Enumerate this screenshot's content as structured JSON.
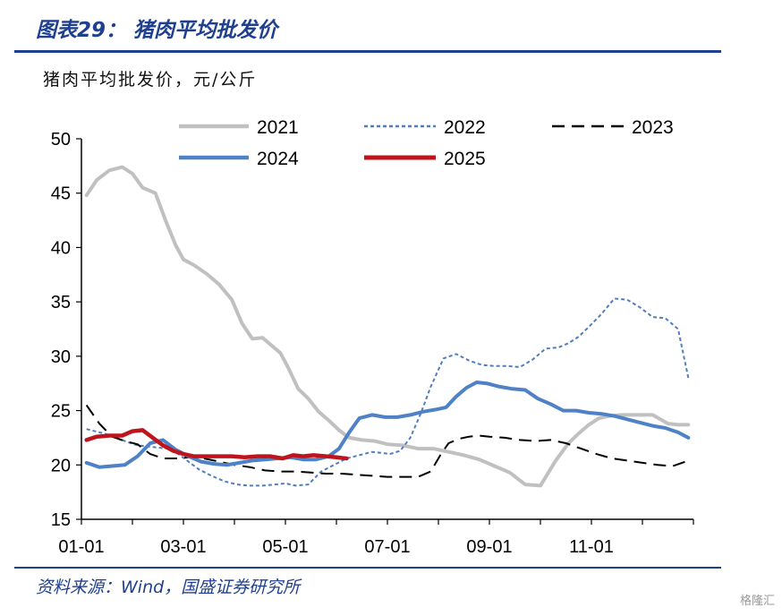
{
  "header": {
    "title": "图表29：  猪肉平均批发价",
    "unit": "猪肉平均批发价，元/公斤"
  },
  "footer": {
    "source": "资料来源：Wind，国盛证券研究所",
    "watermark": "格隆汇"
  },
  "colors": {
    "brand": "#1f3f8f",
    "s2021": "#c0c0c0",
    "s2022": "#4f7dc0",
    "s2023": "#000000",
    "s2024": "#4f81c6",
    "s2025": "#c0141c"
  },
  "chart_data": {
    "type": "line",
    "title": "",
    "xlabel": "",
    "ylabel": "猪肉平均批发价，元/公斤",
    "ylim": [
      15,
      50
    ],
    "yticks": [
      15,
      20,
      25,
      30,
      35,
      40,
      45,
      50
    ],
    "xlim": [
      0,
      12
    ],
    "xtick_labels": [
      "01-01",
      "03-01",
      "05-01",
      "07-01",
      "09-01",
      "11-01"
    ],
    "xtick_positions": [
      0,
      2,
      4,
      6,
      8,
      10
    ],
    "legend_position": "top",
    "grid": false,
    "series": [
      {
        "name": "2021",
        "style": "solid",
        "x": [
          0.1,
          0.3,
          0.55,
          0.8,
          1.0,
          1.2,
          1.45,
          1.65,
          1.85,
          2.0,
          2.2,
          2.45,
          2.7,
          2.95,
          3.15,
          3.35,
          3.55,
          3.7,
          3.9,
          4.05,
          4.25,
          4.45,
          4.65,
          4.85,
          5.05,
          5.25,
          5.5,
          5.75,
          6.0,
          6.3,
          6.6,
          6.9,
          7.2,
          7.5,
          7.8,
          8.1,
          8.4,
          8.7,
          9.0,
          9.3,
          9.55,
          9.75,
          9.95,
          10.15,
          10.35,
          10.6,
          10.9,
          11.2,
          11.5,
          11.7,
          11.9
        ],
        "y": [
          44.8,
          46.2,
          47.1,
          47.4,
          46.8,
          45.5,
          45.0,
          42.5,
          40.2,
          38.9,
          38.4,
          37.6,
          36.6,
          35.2,
          33.0,
          31.6,
          31.7,
          31.1,
          30.3,
          29.0,
          27.0,
          26.1,
          24.9,
          24.1,
          23.2,
          22.5,
          22.3,
          22.2,
          21.9,
          21.8,
          21.5,
          21.5,
          21.2,
          20.9,
          20.5,
          19.9,
          19.3,
          18.2,
          18.1,
          20.4,
          22.0,
          22.9,
          23.7,
          24.3,
          24.5,
          24.6,
          24.6,
          24.6,
          23.8,
          23.7,
          23.7
        ]
      },
      {
        "name": "2022",
        "style": "dotted",
        "x": [
          0.1,
          0.35,
          0.6,
          0.85,
          1.1,
          1.3,
          1.5,
          1.7,
          1.9,
          2.1,
          2.3,
          2.55,
          2.8,
          3.05,
          3.3,
          3.55,
          3.8,
          4.0,
          4.2,
          4.45,
          4.7,
          4.95,
          5.2,
          5.45,
          5.7,
          5.9,
          6.05,
          6.25,
          6.45,
          6.65,
          6.85,
          7.1,
          7.35,
          7.6,
          7.85,
          8.1,
          8.35,
          8.6,
          8.85,
          9.1,
          9.35,
          9.55,
          9.75,
          9.95,
          10.2,
          10.45,
          10.7,
          10.95,
          11.2,
          11.45,
          11.7,
          11.9
        ],
        "y": [
          23.3,
          23.0,
          22.7,
          22.2,
          21.8,
          21.7,
          21.6,
          21.5,
          21.0,
          20.3,
          19.6,
          19.0,
          18.5,
          18.2,
          18.1,
          18.1,
          18.2,
          18.3,
          18.1,
          18.2,
          19.4,
          20.0,
          20.6,
          20.9,
          21.2,
          21.1,
          21.0,
          21.3,
          22.5,
          24.7,
          27.2,
          29.8,
          30.2,
          29.6,
          29.2,
          29.1,
          29.1,
          29.0,
          29.7,
          30.7,
          30.8,
          31.2,
          31.8,
          32.7,
          33.9,
          35.3,
          35.2,
          34.5,
          33.6,
          33.5,
          32.5,
          28.0
        ]
      },
      {
        "name": "2023",
        "style": "dashed",
        "x": [
          0.1,
          0.35,
          0.6,
          0.85,
          1.1,
          1.35,
          1.6,
          1.85,
          2.1,
          2.4,
          2.7,
          3.0,
          3.3,
          3.6,
          3.9,
          4.2,
          4.5,
          4.8,
          5.1,
          5.4,
          5.7,
          6.0,
          6.3,
          6.6,
          6.85,
          7.05,
          7.2,
          7.4,
          7.6,
          7.8,
          8.0,
          8.3,
          8.6,
          8.9,
          9.2,
          9.5,
          9.8,
          10.1,
          10.4,
          10.7,
          11.0,
          11.3,
          11.6,
          11.9
        ],
        "y": [
          25.5,
          23.8,
          22.6,
          22.2,
          21.9,
          21.0,
          20.6,
          20.6,
          20.7,
          20.6,
          20.3,
          20.0,
          19.8,
          19.5,
          19.4,
          19.4,
          19.3,
          19.2,
          19.2,
          19.1,
          19.0,
          18.9,
          18.9,
          18.9,
          19.4,
          21.0,
          22.0,
          22.4,
          22.6,
          22.7,
          22.6,
          22.5,
          22.3,
          22.2,
          22.3,
          22.0,
          21.5,
          21.0,
          20.6,
          20.4,
          20.2,
          20.0,
          19.9,
          20.4
        ]
      },
      {
        "name": "2024",
        "style": "solid",
        "x": [
          0.1,
          0.35,
          0.6,
          0.85,
          1.1,
          1.35,
          1.6,
          1.85,
          2.1,
          2.35,
          2.6,
          2.85,
          3.1,
          3.35,
          3.6,
          3.85,
          4.1,
          4.35,
          4.6,
          4.85,
          5.05,
          5.25,
          5.45,
          5.7,
          5.95,
          6.2,
          6.45,
          6.7,
          6.95,
          7.15,
          7.35,
          7.55,
          7.75,
          7.95,
          8.2,
          8.45,
          8.7,
          8.95,
          9.2,
          9.45,
          9.7,
          9.95,
          10.2,
          10.45,
          10.7,
          10.95,
          11.2,
          11.45,
          11.7,
          11.9
        ],
        "y": [
          20.2,
          19.8,
          19.9,
          20.0,
          20.8,
          22.0,
          22.3,
          21.4,
          20.8,
          20.3,
          20.1,
          20.0,
          20.2,
          20.4,
          20.5,
          20.6,
          20.7,
          20.5,
          20.5,
          20.8,
          21.5,
          23.0,
          24.3,
          24.6,
          24.4,
          24.4,
          24.6,
          24.9,
          25.1,
          25.3,
          26.3,
          27.1,
          27.6,
          27.5,
          27.2,
          27.0,
          26.9,
          26.1,
          25.6,
          25.0,
          25.0,
          24.8,
          24.7,
          24.5,
          24.2,
          23.9,
          23.6,
          23.4,
          23.0,
          22.5
        ]
      },
      {
        "name": "2025",
        "style": "solid",
        "x": [
          0.1,
          0.3,
          0.55,
          0.8,
          1.0,
          1.2,
          1.4,
          1.6,
          1.8,
          2.0,
          2.2,
          2.45,
          2.7,
          2.95,
          3.2,
          3.45,
          3.7,
          3.95,
          4.15,
          4.35,
          4.55,
          4.8,
          5.0,
          5.2
        ],
        "y": [
          22.3,
          22.6,
          22.7,
          22.7,
          23.1,
          23.2,
          22.5,
          21.8,
          21.3,
          21.0,
          20.8,
          20.8,
          20.8,
          20.8,
          20.7,
          20.8,
          20.8,
          20.6,
          20.9,
          20.8,
          20.9,
          20.8,
          20.7,
          20.6
        ]
      }
    ]
  }
}
